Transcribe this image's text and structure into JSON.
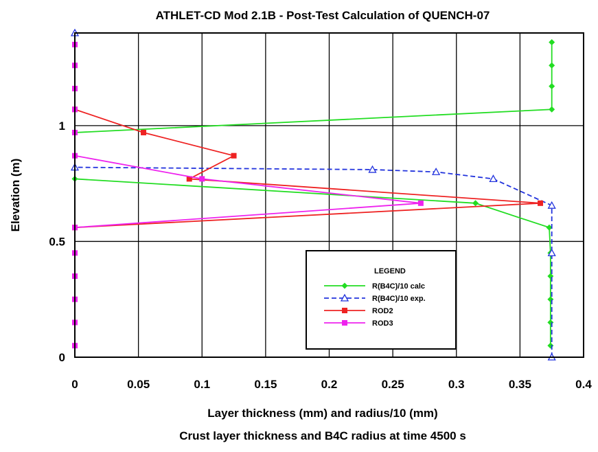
{
  "chart_data": {
    "type": "line",
    "title": "ATHLET-CD Mod 2.1B - Post-Test Calculation of QUENCH-07",
    "xlabel": "Layer thickness (mm) and radius/10 (mm)",
    "subtitle": "Crust layer thickness and B4C radius at time 4500 s",
    "ylabel": "Elevation (m)",
    "xlim": [
      0,
      0.4
    ],
    "ylim": [
      0,
      1.4
    ],
    "x_ticks": [
      "0",
      "0.05",
      "0.1",
      "0.15",
      "0.2",
      "0.25",
      "0.3",
      "0.35",
      "0.4"
    ],
    "y_ticks": [
      "0",
      "0.5",
      "1"
    ],
    "grid": true,
    "legend": {
      "title": "LEGEND",
      "placement": "lower-right"
    },
    "series": [
      {
        "name": "R(B4C)/10 calc",
        "color": "#22dd22",
        "marker": "diamond",
        "dash": false,
        "points": [
          [
            0.374,
            0.05
          ],
          [
            0.374,
            0.15
          ],
          [
            0.374,
            0.25
          ],
          [
            0.374,
            0.35
          ],
          [
            0.374,
            0.45
          ],
          [
            0.373,
            0.56
          ],
          [
            0.315,
            0.665
          ],
          [
            0,
            0.77
          ],
          [
            0,
            0.97
          ],
          [
            0.375,
            1.07
          ],
          [
            0.375,
            1.17
          ],
          [
            0.375,
            1.26
          ],
          [
            0.375,
            1.36
          ]
        ]
      },
      {
        "name": "R(B4C)/10 exp.",
        "color": "#2233dd",
        "marker": "triangle",
        "dash": true,
        "points": [
          [
            0.375,
            0
          ],
          [
            0.375,
            0.45
          ],
          [
            0.375,
            0.655
          ],
          [
            0.329,
            0.77
          ],
          [
            0.284,
            0.8
          ],
          [
            0.234,
            0.81
          ],
          [
            0,
            0.82
          ],
          [
            0,
            1.4
          ]
        ]
      },
      {
        "name": "ROD2",
        "color": "#ee2222",
        "marker": "square",
        "dash": false,
        "points": [
          [
            0,
            0.56
          ],
          [
            0.366,
            0.665
          ],
          [
            0.09,
            0.77
          ],
          [
            0.125,
            0.87
          ],
          [
            0.054,
            0.97
          ],
          [
            0,
            1.07
          ]
        ]
      },
      {
        "name": "ROD3",
        "color": "#ee22ee",
        "marker": "square",
        "dash": false,
        "points": [
          [
            0,
            0.05
          ],
          [
            0,
            0.15
          ],
          [
            0,
            0.25
          ],
          [
            0,
            0.35
          ],
          [
            0,
            0.45
          ],
          [
            0,
            0.56
          ],
          [
            0.272,
            0.665
          ],
          [
            0.1,
            0.77
          ],
          [
            0,
            0.87
          ],
          [
            0,
            0.97
          ],
          [
            0,
            1.07
          ],
          [
            0,
            1.16
          ],
          [
            0,
            1.26
          ],
          [
            0,
            1.35
          ]
        ]
      }
    ]
  }
}
